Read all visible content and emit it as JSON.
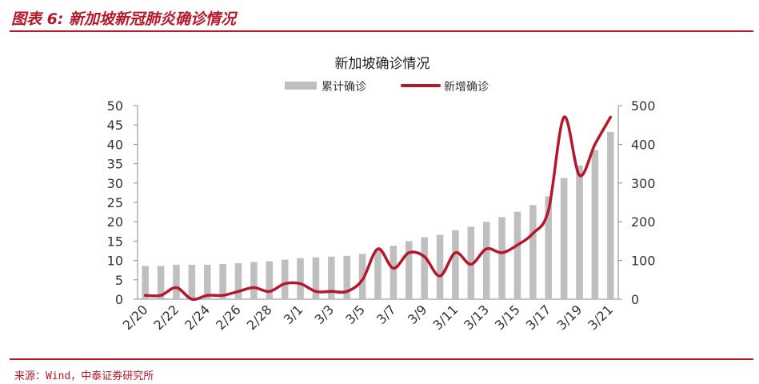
{
  "figure": {
    "title": "图表 6: 新加坡新冠肺炎确诊情况",
    "source": "来源：Wind，中泰证券研究所"
  },
  "colors": {
    "brand": "#b5172b",
    "bar": "#bfbfbf",
    "line": "#b5172b",
    "axis": "#8a8a8a",
    "text": "#333333"
  },
  "chart_data": {
    "type": "bar",
    "title": "新加坡确诊情况",
    "legend_position": "top",
    "grid": false,
    "x": [
      "2/20",
      "2/21",
      "2/22",
      "2/23",
      "2/24",
      "2/25",
      "2/26",
      "2/27",
      "2/28",
      "2/29",
      "3/1",
      "3/2",
      "3/3",
      "3/4",
      "3/5",
      "3/6",
      "3/7",
      "3/8",
      "3/9",
      "3/10",
      "3/11",
      "3/12",
      "3/13",
      "3/14",
      "3/15",
      "3/16",
      "3/17",
      "3/18",
      "3/19",
      "3/20",
      "3/21"
    ],
    "x_tick_labels": [
      "2/20",
      "2/22",
      "2/24",
      "2/26",
      "2/28",
      "3/1",
      "3/3",
      "3/5",
      "3/7",
      "3/9",
      "3/11",
      "3/13",
      "3/15",
      "3/17",
      "3/19",
      "3/21"
    ],
    "left_axis": {
      "min": 0,
      "max": 50,
      "ticks": [
        0,
        5,
        10,
        15,
        20,
        25,
        30,
        35,
        40,
        45,
        50
      ]
    },
    "right_axis": {
      "min": 0,
      "max": 500,
      "ticks": [
        0,
        100,
        200,
        300,
        400,
        500
      ]
    },
    "series": [
      {
        "name": "累计确诊",
        "type": "bar",
        "axis": "left",
        "values": [
          8.6,
          8.6,
          8.9,
          8.9,
          8.9,
          9.1,
          9.3,
          9.6,
          9.8,
          10.2,
          10.6,
          10.8,
          11.0,
          11.2,
          11.7,
          13.0,
          13.8,
          15.0,
          16.0,
          16.6,
          17.8,
          18.7,
          20.0,
          21.2,
          22.6,
          24.3,
          26.6,
          31.3,
          34.5,
          38.5,
          43.2
        ]
      },
      {
        "name": "新增确诊",
        "type": "line",
        "axis": "right",
        "values": [
          10,
          10,
          30,
          0,
          10,
          10,
          20,
          30,
          20,
          40,
          40,
          20,
          20,
          20,
          50,
          130,
          80,
          120,
          110,
          60,
          120,
          90,
          130,
          120,
          140,
          170,
          230,
          470,
          320,
          400,
          470
        ]
      }
    ]
  }
}
